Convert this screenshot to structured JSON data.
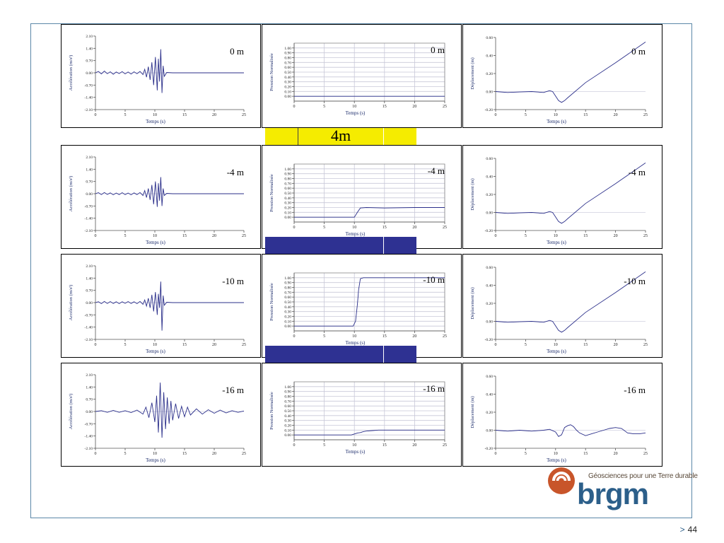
{
  "slide": {
    "page_number": "44",
    "page_prefix": ">",
    "layer_bar_label": "4m",
    "colors": {
      "frame": "#5b87a8",
      "trace": "#2b2f8a",
      "grid": "#c8c8d8",
      "layer_yellow": "#f5ec00",
      "layer_blue": "#2e3192"
    },
    "logo": {
      "tagline": "Géosciences pour une Terre durable",
      "wordmark": "brgm",
      "mark_color": "#c8552a"
    }
  },
  "chart_data": [
    {
      "type": "line",
      "row": 0,
      "col": 0,
      "depth_label": "0 m",
      "xlabel": "Temps (s)",
      "ylabel": "Accélération (m/s²)",
      "xlim": [
        0,
        25
      ],
      "ylim": [
        -2.1,
        2.1
      ],
      "xticks": [
        "0",
        "5",
        "10",
        "15",
        "20",
        "25"
      ],
      "yticks": [
        "2.10",
        "1.40",
        "0.70",
        "0.00",
        "-0.70",
        "-1.40",
        "-2.10"
      ],
      "grid": false,
      "series": [
        {
          "x": [
            0,
            0.5,
            1,
            1.5,
            2,
            2.5,
            3,
            3.5,
            4,
            4.5,
            5,
            5.5,
            6,
            6.5,
            7,
            7.5,
            8,
            8.3,
            8.6,
            8.9,
            9.2,
            9.5,
            9.8,
            10.1,
            10.4,
            10.6,
            10.8,
            11,
            11.2,
            11.4,
            11.6,
            12,
            13,
            15,
            20,
            25
          ],
          "y": [
            0,
            0.08,
            -0.06,
            0.1,
            -0.05,
            0.06,
            -0.08,
            0.05,
            -0.04,
            0.07,
            -0.06,
            0.05,
            -0.07,
            0.06,
            -0.05,
            0.08,
            -0.1,
            0.2,
            -0.25,
            0.35,
            -0.4,
            0.6,
            -0.7,
            0.9,
            -1.0,
            0.8,
            -0.5,
            1.35,
            -1.15,
            0.4,
            -0.2,
            0.02,
            0,
            0,
            0,
            0
          ]
        }
      ]
    },
    {
      "type": "line",
      "row": 0,
      "col": 1,
      "depth_label": "0 m",
      "xlabel": "Temps (s)",
      "ylabel": "Pression Normalisée",
      "xlim": [
        0,
        25
      ],
      "ylim": [
        -0.1,
        1.1
      ],
      "xticks": [
        "0",
        "5",
        "10",
        "15",
        "20",
        "25"
      ],
      "yticks": [
        "1.00",
        "0.90",
        "0.80",
        "0.70",
        "0.60",
        "0.50",
        "0.40",
        "0.30",
        "0.20",
        "0.10",
        "0.00"
      ],
      "grid": true,
      "series": [
        {
          "x": [
            0,
            25
          ],
          "y": [
            0,
            0
          ]
        }
      ]
    },
    {
      "type": "line",
      "row": 0,
      "col": 2,
      "depth_label": "0 m",
      "xlabel": "Temps (s)",
      "ylabel": "Déplacement (m)",
      "xlim": [
        0,
        25
      ],
      "ylim": [
        -0.2,
        0.6
      ],
      "xticks": [
        "0",
        "5",
        "10",
        "15",
        "20",
        "25"
      ],
      "yticks": [
        "0.60",
        "0.40",
        "0.20",
        "0.00",
        "-0.20"
      ],
      "grid": false,
      "series": [
        {
          "x": [
            0,
            2,
            4,
            6,
            8,
            9,
            9.5,
            10,
            10.5,
            11,
            11.5,
            12,
            15,
            20,
            25
          ],
          "y": [
            0,
            -0.01,
            -0.005,
            0,
            -0.01,
            0.01,
            0.0,
            -0.05,
            -0.1,
            -0.12,
            -0.1,
            -0.07,
            0.1,
            0.32,
            0.55
          ]
        }
      ]
    },
    {
      "type": "line",
      "row": 1,
      "col": 0,
      "depth_label": "-4 m",
      "xlabel": "Temps (s)",
      "ylabel": "Accélération (m/s²)",
      "xlim": [
        0,
        25
      ],
      "ylim": [
        -2.1,
        2.1
      ],
      "xticks": [
        "0",
        "5",
        "10",
        "15",
        "20",
        "25"
      ],
      "yticks": [
        "2.10",
        "1.40",
        "0.70",
        "0.00",
        "-0.70",
        "-1.40",
        "-2.10"
      ],
      "grid": false,
      "series": [
        {
          "x": [
            0,
            0.5,
            1,
            1.5,
            2,
            2.5,
            3,
            3.5,
            4,
            4.5,
            5,
            5.5,
            6,
            6.5,
            7,
            7.5,
            8,
            8.3,
            8.6,
            8.9,
            9.2,
            9.5,
            9.8,
            10.1,
            10.4,
            10.6,
            10.8,
            11,
            11.2,
            11.4,
            11.6,
            12,
            13,
            15,
            20,
            25
          ],
          "y": [
            0,
            0.06,
            -0.05,
            0.07,
            -0.04,
            0.05,
            -0.06,
            0.04,
            -0.05,
            0.06,
            -0.05,
            0.04,
            -0.06,
            0.05,
            -0.05,
            0.07,
            -0.1,
            0.18,
            -0.22,
            0.3,
            -0.35,
            0.5,
            -0.6,
            0.7,
            -0.75,
            0.6,
            -0.4,
            0.95,
            -0.7,
            0.3,
            -0.1,
            0.02,
            0,
            0,
            0,
            0
          ]
        }
      ]
    },
    {
      "type": "line",
      "row": 1,
      "col": 1,
      "depth_label": "-4 m",
      "xlabel": "Temps (s)",
      "ylabel": "Pression Normalisée",
      "xlim": [
        0,
        25
      ],
      "ylim": [
        -0.1,
        1.1
      ],
      "xticks": [
        "0",
        "5",
        "10",
        "15",
        "20",
        "25"
      ],
      "yticks": [
        "1.00",
        "0.90",
        "0.80",
        "0.70",
        "0.60",
        "0.50",
        "0.40",
        "0.30",
        "0.20",
        "0.10",
        "0.00"
      ],
      "grid": true,
      "series": [
        {
          "x": [
            0,
            10,
            10.5,
            11,
            12,
            15,
            20,
            25
          ],
          "y": [
            0,
            0,
            0.1,
            0.19,
            0.2,
            0.19,
            0.2,
            0.2
          ]
        }
      ]
    },
    {
      "type": "line",
      "row": 1,
      "col": 2,
      "depth_label": "-4 m",
      "xlabel": "Temps (s)",
      "ylabel": "Déplacement (m)",
      "xlim": [
        0,
        25
      ],
      "ylim": [
        -0.2,
        0.6
      ],
      "xticks": [
        "0",
        "5",
        "10",
        "15",
        "20",
        "25"
      ],
      "yticks": [
        "0.60",
        "0.40",
        "0.20",
        "0.00",
        "-0.20"
      ],
      "grid": false,
      "series": [
        {
          "x": [
            0,
            2,
            4,
            6,
            8,
            9,
            9.5,
            10,
            10.5,
            11,
            11.5,
            12,
            15,
            20,
            25
          ],
          "y": [
            0,
            -0.01,
            -0.005,
            0,
            -0.01,
            0.01,
            0.0,
            -0.05,
            -0.1,
            -0.12,
            -0.1,
            -0.07,
            0.1,
            0.32,
            0.55
          ]
        }
      ]
    },
    {
      "type": "line",
      "row": 2,
      "col": 0,
      "depth_label": "-10 m",
      "xlabel": "Temps (s)",
      "ylabel": "Accélération (m/s²)",
      "xlim": [
        0,
        25
      ],
      "ylim": [
        -2.1,
        2.1
      ],
      "xticks": [
        "0",
        "5",
        "10",
        "15",
        "20",
        "25"
      ],
      "yticks": [
        "2.10",
        "1.40",
        "0.70",
        "0.00",
        "-0.70",
        "-1.40",
        "-2.10"
      ],
      "grid": false,
      "series": [
        {
          "x": [
            0,
            0.5,
            1,
            1.5,
            2,
            2.5,
            3,
            3.5,
            4,
            4.5,
            5,
            5.5,
            6,
            6.5,
            7,
            7.5,
            8,
            8.3,
            8.6,
            8.9,
            9.2,
            9.5,
            9.8,
            10.1,
            10.4,
            10.6,
            10.8,
            11,
            11.2,
            11.4,
            11.6,
            12,
            13,
            15,
            20,
            25
          ],
          "y": [
            0,
            0.05,
            -0.06,
            0.07,
            -0.05,
            0.06,
            -0.05,
            0.05,
            -0.06,
            0.05,
            -0.04,
            0.06,
            -0.05,
            0.05,
            -0.06,
            0.07,
            -0.1,
            0.15,
            -0.2,
            0.25,
            -0.3,
            0.45,
            -0.5,
            0.6,
            -0.7,
            0.5,
            -0.3,
            1.2,
            -1.6,
            0.4,
            -0.15,
            0.02,
            0,
            0,
            0,
            0
          ]
        }
      ]
    },
    {
      "type": "line",
      "row": 2,
      "col": 1,
      "depth_label": "-10 m",
      "xlabel": "Temps (s)",
      "ylabel": "Pression Normalisée",
      "xlim": [
        0,
        25
      ],
      "ylim": [
        -0.1,
        1.1
      ],
      "xticks": [
        "0",
        "5",
        "10",
        "15",
        "20",
        "25"
      ],
      "yticks": [
        "1.00",
        "0.90",
        "0.80",
        "0.70",
        "0.60",
        "0.50",
        "0.40",
        "0.30",
        "0.20",
        "0.10",
        "0.00"
      ],
      "grid": true,
      "series": [
        {
          "x": [
            0,
            9.8,
            10.2,
            10.5,
            10.7,
            11,
            11.5,
            12,
            15,
            20,
            25
          ],
          "y": [
            0,
            0,
            0.1,
            0.45,
            0.75,
            0.98,
            1.0,
            1.0,
            1.0,
            1.0,
            1.0
          ]
        }
      ]
    },
    {
      "type": "line",
      "row": 2,
      "col": 2,
      "depth_label": "-10 m",
      "xlabel": "Temps (s)",
      "ylabel": "Déplacement (m)",
      "xlim": [
        0,
        25
      ],
      "ylim": [
        -0.2,
        0.6
      ],
      "xticks": [
        "0",
        "5",
        "10",
        "15",
        "20",
        "25"
      ],
      "yticks": [
        "0.60",
        "0.40",
        "0.20",
        "0.00",
        "-0.20"
      ],
      "grid": false,
      "series": [
        {
          "x": [
            0,
            2,
            4,
            6,
            8,
            9,
            9.5,
            10,
            10.5,
            11,
            11.5,
            12,
            15,
            20,
            25
          ],
          "y": [
            0,
            -0.01,
            -0.005,
            0,
            -0.01,
            0.01,
            0.0,
            -0.05,
            -0.1,
            -0.12,
            -0.1,
            -0.07,
            0.1,
            0.32,
            0.55
          ]
        }
      ]
    },
    {
      "type": "line",
      "row": 3,
      "col": 0,
      "depth_label": "-16 m",
      "xlabel": "Temps (s)",
      "ylabel": "Accélération (m/s²)",
      "xlim": [
        0,
        25
      ],
      "ylim": [
        -2.1,
        2.1
      ],
      "xticks": [
        "0",
        "5",
        "10",
        "15",
        "20",
        "25"
      ],
      "yticks": [
        "2.10",
        "1.40",
        "0.70",
        "0.00",
        "-0.70",
        "-1.40",
        "-2.10"
      ],
      "grid": false,
      "series": [
        {
          "x": [
            0,
            1,
            2,
            3,
            4,
            5,
            6,
            7,
            8,
            8.5,
            9,
            9.5,
            10,
            10.3,
            10.6,
            10.9,
            11.2,
            11.5,
            11.8,
            12.1,
            12.4,
            12.7,
            13,
            13.5,
            14,
            14.5,
            15,
            15.5,
            16,
            17,
            18,
            19,
            20,
            21,
            22,
            23,
            24,
            25
          ],
          "y": [
            0,
            0.05,
            -0.05,
            0.06,
            -0.05,
            0.05,
            -0.06,
            0.08,
            -0.15,
            0.25,
            -0.35,
            0.5,
            -0.6,
            0.9,
            -1.2,
            1.65,
            -1.5,
            1.1,
            -1.0,
            0.8,
            -0.7,
            0.6,
            -0.5,
            0.45,
            -0.4,
            0.3,
            -0.3,
            0.25,
            -0.2,
            0.15,
            -0.15,
            0.1,
            -0.1,
            0.08,
            -0.08,
            0.05,
            -0.05,
            0.03
          ]
        }
      ]
    },
    {
      "type": "line",
      "row": 3,
      "col": 1,
      "depth_label": "-16 m",
      "xlabel": "Temps (s)",
      "ylabel": "Pression Normalisée",
      "xlim": [
        0,
        25
      ],
      "ylim": [
        -0.1,
        1.1
      ],
      "xticks": [
        "0",
        "5",
        "10",
        "15",
        "20",
        "25"
      ],
      "yticks": [
        "1.00",
        "0.90",
        "0.80",
        "0.70",
        "0.60",
        "0.50",
        "0.40",
        "0.30",
        "0.20",
        "0.10",
        "0.00"
      ],
      "grid": true,
      "series": [
        {
          "x": [
            0,
            9.5,
            10,
            10.5,
            11,
            11.5,
            12,
            13,
            14,
            15,
            20,
            25
          ],
          "y": [
            0,
            0,
            0.02,
            0.04,
            0.05,
            0.07,
            0.08,
            0.09,
            0.1,
            0.1,
            0.1,
            0.1
          ]
        }
      ]
    },
    {
      "type": "line",
      "row": 3,
      "col": 2,
      "depth_label": "-16 m",
      "xlabel": "Temps (s)",
      "ylabel": "Déplacement (m)",
      "xlim": [
        0,
        25
      ],
      "ylim": [
        -0.2,
        0.6
      ],
      "xticks": [
        "0",
        "5",
        "10",
        "15",
        "20",
        "25"
      ],
      "yticks": [
        "0.60",
        "0.40",
        "0.20",
        "0.00",
        "-0.20"
      ],
      "grid": false,
      "series": [
        {
          "x": [
            0,
            2,
            4,
            6,
            8,
            9,
            10,
            10.5,
            11,
            11.5,
            12,
            12.5,
            13,
            13.5,
            14,
            15,
            16,
            17,
            18,
            19,
            20,
            21,
            22,
            23,
            24,
            25
          ],
          "y": [
            0,
            -0.01,
            0.0,
            -0.01,
            0.0,
            0.01,
            -0.02,
            -0.07,
            -0.05,
            0.03,
            0.05,
            0.06,
            0.04,
            0.0,
            -0.03,
            -0.06,
            -0.04,
            -0.02,
            0.0,
            0.02,
            0.03,
            0.02,
            -0.03,
            -0.04,
            -0.04,
            -0.03
          ]
        }
      ]
    }
  ]
}
